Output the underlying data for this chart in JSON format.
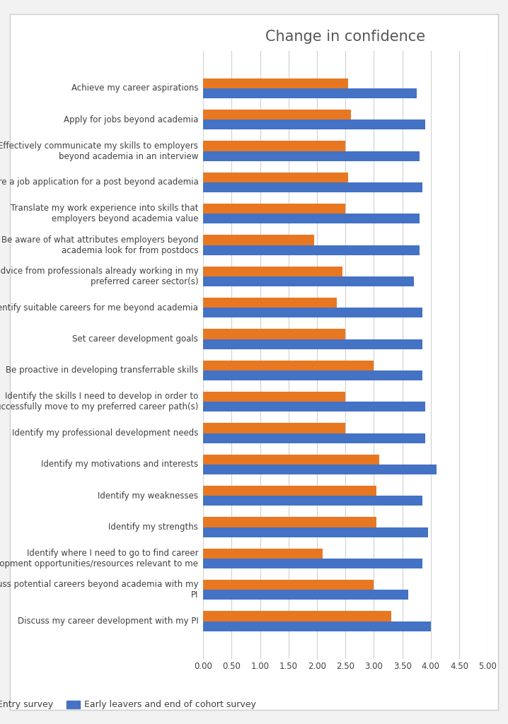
{
  "title": "Change in confidence",
  "categories": [
    "Achieve my career aspirations",
    "Apply for jobs beyond academia",
    "Effectively communicate my skills to employers\nbeyond academia in an interview",
    "Prepare a job application for a post beyond academia",
    "Translate my work experience into skills that\nemployers beyond academia value",
    "Be aware of what attributes employers beyond\nacademia look for from postdocs",
    "Seek advice from professionals already working in my\npreferred career sector(s)",
    "Identify suitable careers for me beyond academia",
    "Set career development goals",
    "Be proactive in developing transferrable skills",
    "Identify the skills I need to develop in order to\nsuccessfully move to my preferred career path(s)",
    "Identify my professional development needs",
    "Identify my motivations and interests",
    "Identify my weaknesses",
    "Identify my strengths",
    "Identify where I need to go to find career\ndevelopment opportunities/resources relevant to me",
    "Discuss potential careers beyond academia with my\nPI",
    "Discuss my career development with my PI"
  ],
  "entry_survey": [
    2.55,
    2.6,
    2.5,
    2.55,
    2.5,
    1.95,
    2.45,
    2.35,
    2.5,
    3.0,
    2.5,
    2.5,
    3.1,
    3.05,
    3.05,
    2.1,
    3.0,
    3.3
  ],
  "end_survey": [
    3.75,
    3.9,
    3.8,
    3.85,
    3.8,
    3.8,
    3.7,
    3.85,
    3.85,
    3.85,
    3.9,
    3.9,
    4.1,
    3.85,
    3.95,
    3.85,
    3.6,
    4.0
  ],
  "entry_color": "#E87722",
  "end_color": "#4472C4",
  "xlim": [
    0,
    5.0
  ],
  "xticks": [
    0.0,
    0.5,
    1.0,
    1.5,
    2.0,
    2.5,
    3.0,
    3.5,
    4.0,
    4.5,
    5.0
  ],
  "xtick_labels": [
    "0.00",
    "0.50",
    "1.00",
    "1.50",
    "2.00",
    "2.50",
    "3.00",
    "3.50",
    "4.00",
    "4.50",
    "5.00"
  ],
  "legend_entry": "Entry survey",
  "legend_end": "Early leavers and end of cohort survey",
  "background_color": "#ffffff",
  "outer_bg": "#f2f2f2",
  "bar_height": 0.32,
  "title_fontsize": 15,
  "label_fontsize": 8.5,
  "tick_fontsize": 8.5
}
